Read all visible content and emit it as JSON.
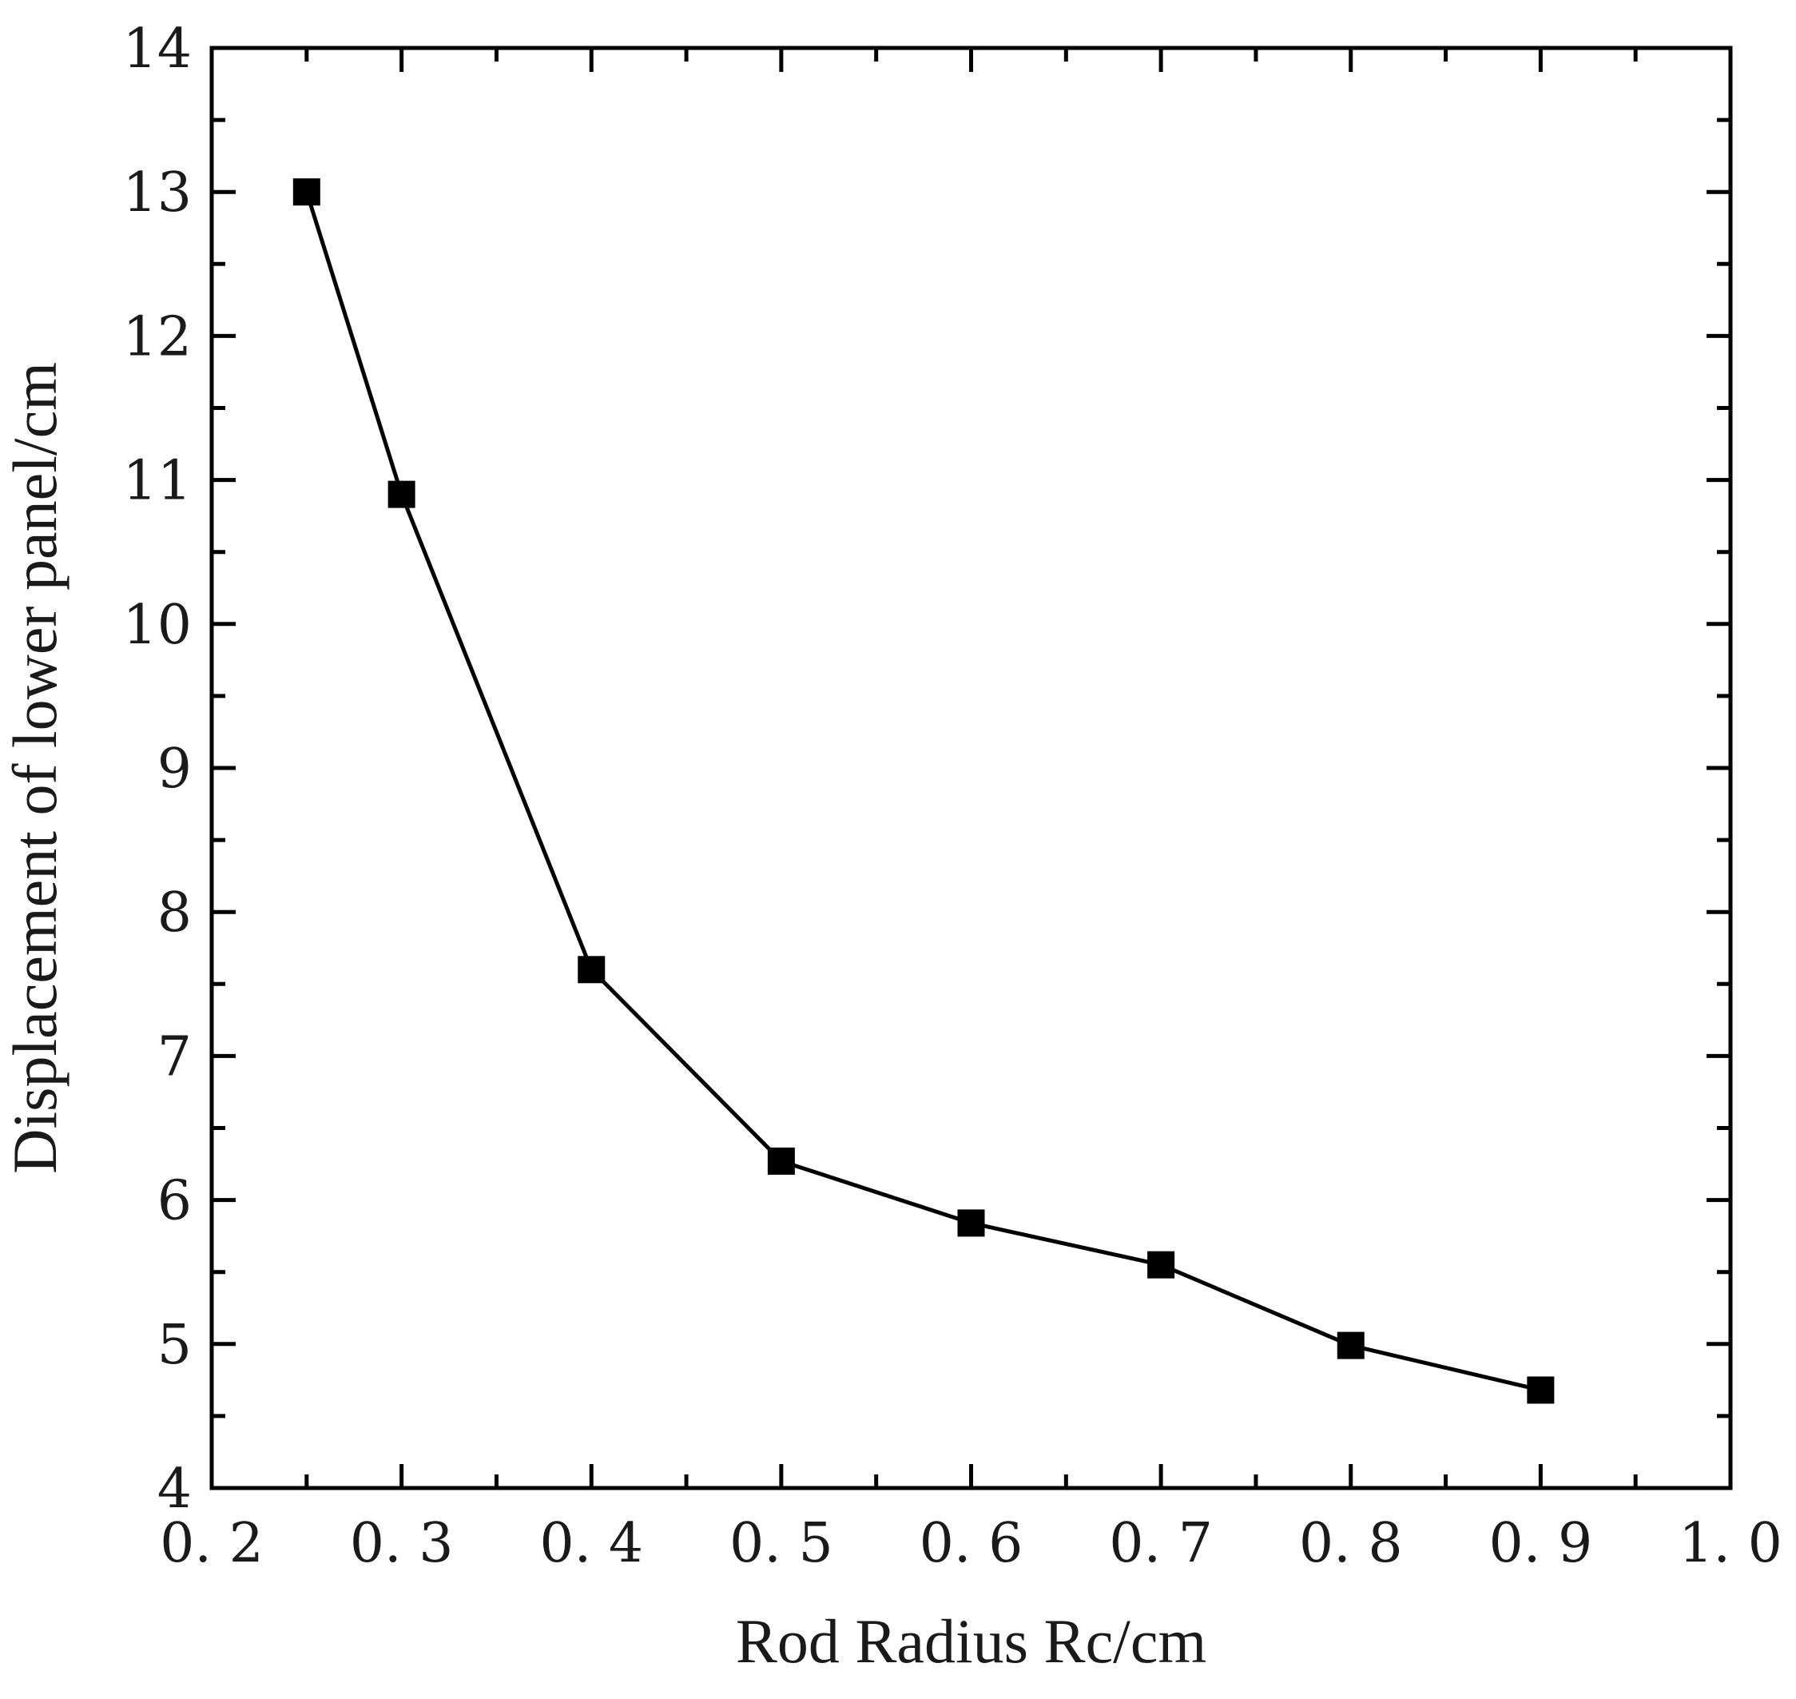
{
  "chart_data": {
    "type": "line",
    "title": "",
    "xlabel": "Rod Radius Rc/cm",
    "ylabel": "Displacement of lower panel/cm",
    "xlim": [
      0.2,
      1.0
    ],
    "ylim": [
      4,
      14
    ],
    "x_ticks": [
      "0. 2",
      "0. 3",
      "0. 4",
      "0. 5",
      "0. 6",
      "0. 7",
      "0. 8",
      "0. 9",
      "1. 0"
    ],
    "x_tick_values": [
      0.2,
      0.3,
      0.4,
      0.5,
      0.6,
      0.7,
      0.8,
      0.9,
      1.0
    ],
    "y_ticks": [
      "4",
      "5",
      "6",
      "7",
      "8",
      "9",
      "10",
      "11",
      "12",
      "13",
      "14"
    ],
    "y_tick_values": [
      4,
      5,
      6,
      7,
      8,
      9,
      10,
      11,
      12,
      13,
      14
    ],
    "grid": false,
    "legend": "none",
    "marker": "square",
    "color": "#000000",
    "series": [
      {
        "x": [
          0.25,
          0.3,
          0.4,
          0.5,
          0.6,
          0.7,
          0.8,
          0.9
        ],
        "y": [
          13.0,
          10.9,
          7.6,
          6.27,
          5.84,
          5.55,
          4.99,
          4.68
        ]
      }
    ]
  }
}
